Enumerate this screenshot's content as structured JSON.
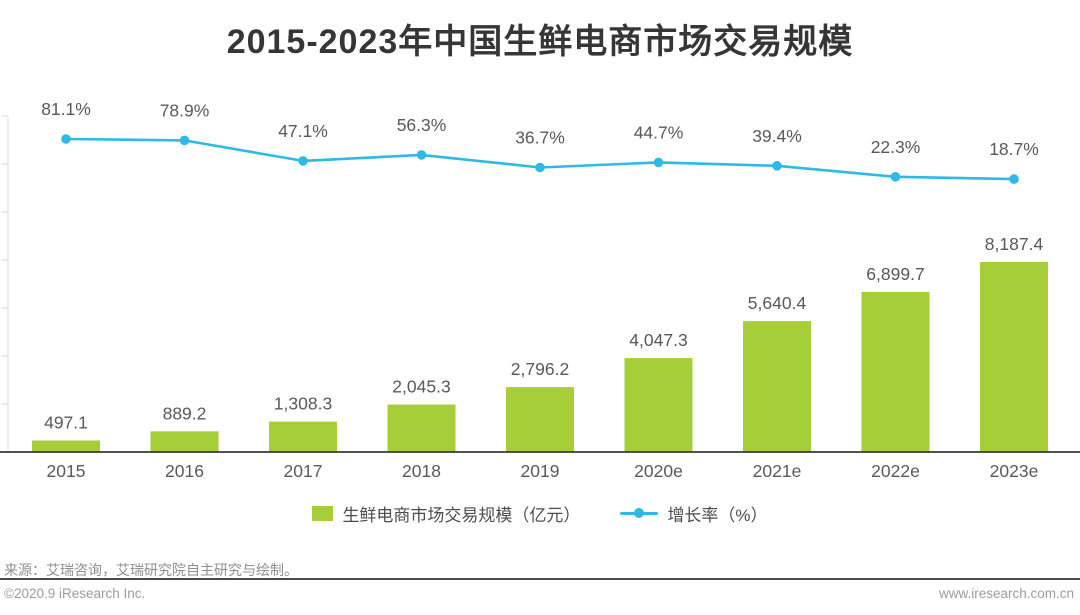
{
  "title": "2015-2023年中国生鲜电商市场交易规模",
  "chart_data": {
    "type": "bar",
    "subtype": "bar-with-line-overlay",
    "title": "2015-2023年中国生鲜电商市场交易规模",
    "categories": [
      "2015",
      "2016",
      "2017",
      "2018",
      "2019",
      "2020e",
      "2021e",
      "2022e",
      "2023e"
    ],
    "series": [
      {
        "name": "生鲜电商市场交易规模（亿元）",
        "type": "bar",
        "unit": "亿元",
        "color": "#a5ce39",
        "values": [
          497.1,
          889.2,
          1308.3,
          2045.3,
          2796.2,
          4047.3,
          5640.4,
          6899.7,
          8187.4
        ],
        "labels": [
          "497.1",
          "889.2",
          "1,308.3",
          "2,045.3",
          "2,796.2",
          "4,047.3",
          "5,640.4",
          "6,899.7",
          "8,187.4"
        ]
      },
      {
        "name": "增长率（%）",
        "type": "line",
        "unit": "%",
        "color": "#2eb9e7",
        "values": [
          81.1,
          78.9,
          47.1,
          56.3,
          36.7,
          44.7,
          39.4,
          22.3,
          18.7
        ],
        "labels": [
          "81.1%",
          "78.9%",
          "47.1%",
          "56.3%",
          "36.7%",
          "44.7%",
          "39.4%",
          "22.3%",
          "18.7%"
        ]
      }
    ],
    "axes": {
      "x_labels_visible": true,
      "y_left_axis_visible": true,
      "y_left_tick_marks": true,
      "y_left_tick_labels_visible": false,
      "grid": false
    },
    "label_color": "#595959",
    "axis_line_color": "#3a3a3a",
    "legend_position": "bottom"
  },
  "legend": {
    "items": [
      {
        "label": "生鲜电商市场交易规模（亿元）",
        "swatch": "bar",
        "color": "#a5ce39"
      },
      {
        "label": "增长率（%）",
        "swatch": "line",
        "color": "#2eb9e7"
      }
    ]
  },
  "footer": {
    "source": "来源：艾瑞咨询，艾瑞研究院自主研究与绘制。",
    "copyright": "©2020.9 iResearch Inc.",
    "website": "www.iresearch.com.cn"
  }
}
